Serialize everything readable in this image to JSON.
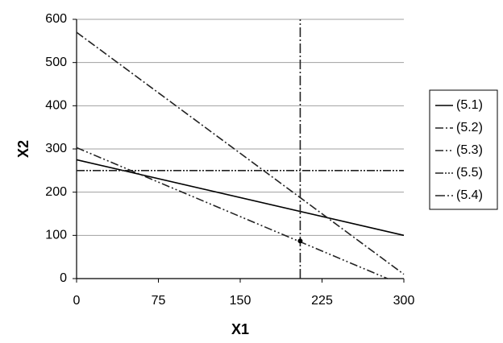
{
  "chart_data": {
    "type": "line",
    "x_label": "X1",
    "y_label": "X2",
    "xlim": [
      0,
      300
    ],
    "xticks": [
      0,
      75,
      150,
      225,
      300
    ],
    "ylim": [
      0,
      600
    ],
    "yticks": [
      0,
      100,
      200,
      300,
      400,
      500,
      600
    ],
    "grid": true,
    "legend": "right",
    "series": [
      {
        "name": "(5.1)",
        "color": "#000000",
        "dash": "none",
        "x": [
          0,
          300
        ],
        "values": [
          275,
          100
        ]
      },
      {
        "name": "(5.2)",
        "color": "#222222",
        "dash": "10 3 2 3",
        "x": [
          0,
          300
        ],
        "values": [
          570,
          10
        ]
      },
      {
        "name": "(5.3)",
        "color": "#222222",
        "dash": "10 3 2 3 2 3",
        "x": [
          0,
          285
        ],
        "values": [
          303,
          0
        ]
      },
      {
        "name": "(5.5)",
        "color": "#222222",
        "dash": "10 2 2 2 2 2",
        "x": [
          0,
          300
        ],
        "values": [
          250,
          250
        ]
      },
      {
        "name": "(5.4)",
        "color": "#222222",
        "dash": "12 3 2 3",
        "x": [
          205,
          205
        ],
        "values": [
          0,
          600
        ]
      }
    ],
    "markers": [
      {
        "x": 205,
        "y": 87
      }
    ]
  }
}
